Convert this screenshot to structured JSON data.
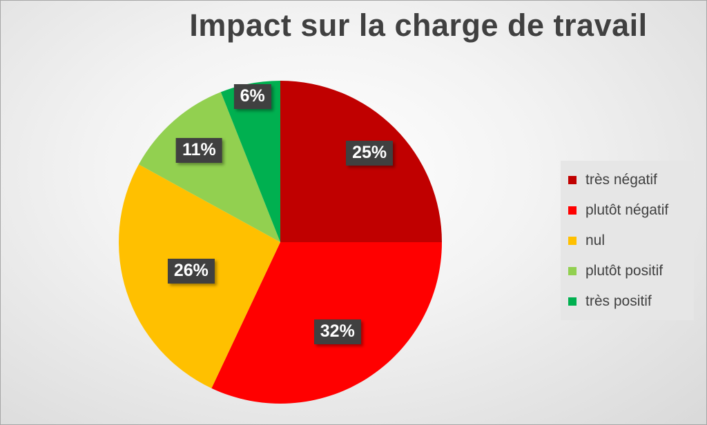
{
  "chart_data": {
    "type": "pie",
    "title": "Impact sur la charge de travail",
    "categories": [
      "très négatif",
      "plutôt négatif",
      "nul",
      "plutôt positif",
      "très positif"
    ],
    "values": [
      25,
      32,
      26,
      11,
      6
    ],
    "labels": [
      "25%",
      "32%",
      "26%",
      "11%",
      "6%"
    ],
    "colors": [
      "#c00000",
      "#ff0000",
      "#ffc000",
      "#92d050",
      "#00b050"
    ],
    "start_angle": "12 o'clock, clockwise",
    "legend_position": "right"
  }
}
